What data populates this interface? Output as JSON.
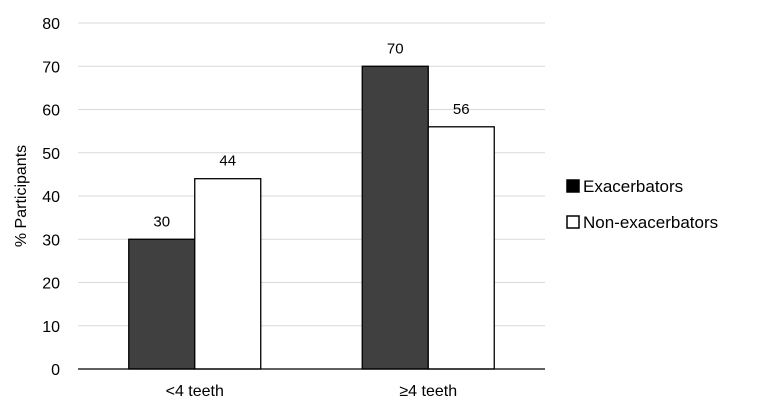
{
  "chart_data": {
    "type": "bar",
    "title": "",
    "xlabel": "",
    "ylabel": "% Participants",
    "ylim": [
      0,
      80
    ],
    "yticks": [
      0,
      10,
      20,
      30,
      40,
      50,
      60,
      70,
      80
    ],
    "grid": true,
    "legend_position": "right",
    "categories": [
      "<4 teeth",
      "≥4 teeth"
    ],
    "series": [
      {
        "name": "Exacerbators",
        "values": [
          30,
          70
        ],
        "color": "#404040",
        "stroke": "#000000"
      },
      {
        "name": "Non-exacerbators",
        "values": [
          44,
          56
        ],
        "color": "#ffffff",
        "stroke": "#000000"
      }
    ]
  },
  "colors": {
    "grid": "#d9d9d9",
    "axis": "#000000"
  }
}
